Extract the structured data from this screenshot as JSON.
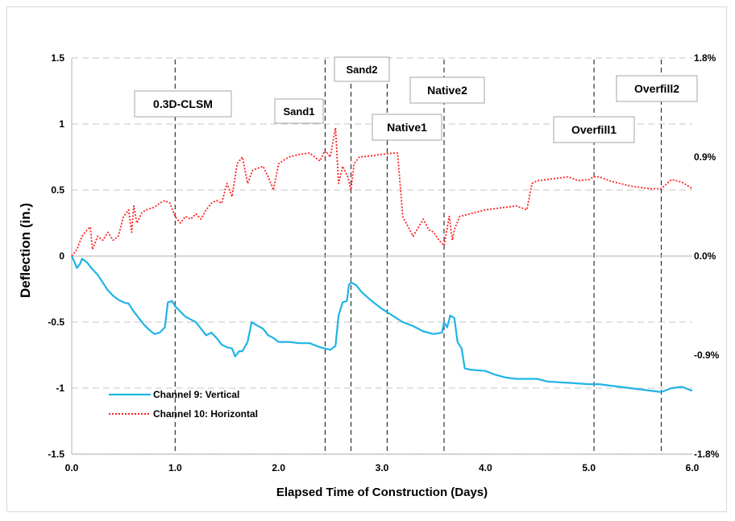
{
  "chart_data": {
    "type": "line",
    "xlabel": "Elapsed Time of Construction (Days)",
    "ylabel": "Deflection  (in.)",
    "xlim": [
      0,
      6
    ],
    "ylim": [
      -1.5,
      1.5
    ],
    "y2lim": [
      -1.8,
      1.8
    ],
    "x_ticks": [
      0,
      1,
      2,
      3,
      4,
      5,
      6
    ],
    "x_tick_labels": [
      "0.0",
      "1.0",
      "2.0",
      "3.0",
      "4.0",
      "5.0",
      "6.0"
    ],
    "y_ticks": [
      -1.5,
      -1,
      -0.5,
      0,
      0.5,
      1,
      1.5
    ],
    "y_tick_labels": [
      "-1.5",
      "-1",
      "-0.5",
      "0",
      "0.5",
      "1",
      "1.5"
    ],
    "y2_ticks": [
      -1.8,
      -0.9,
      0,
      0.9,
      1.8
    ],
    "y2_tick_labels": [
      "-1.8%",
      "-0.9%",
      "0.0%",
      "0.9%",
      "1.8%"
    ],
    "grid": "horizontal dashed",
    "legend_position": "bottom-left",
    "stages": [
      {
        "label": "0.3D-CLSM",
        "x": 1.0
      },
      {
        "label": "Sand1",
        "x": 2.45
      },
      {
        "label": "Sand2",
        "x": 2.7
      },
      {
        "label": "Native1",
        "x": 3.05
      },
      {
        "label": "Native2",
        "x": 3.6
      },
      {
        "label": "Overfill1",
        "x": 5.05
      },
      {
        "label": "Overfill2",
        "x": 5.7
      }
    ],
    "series": [
      {
        "name": "Channel 9: Vertical",
        "color": "#1fb4e6",
        "style": "solid",
        "points": [
          [
            0,
            0
          ],
          [
            0.03,
            -0.05
          ],
          [
            0.05,
            -0.09
          ],
          [
            0.08,
            -0.06
          ],
          [
            0.1,
            -0.02
          ],
          [
            0.15,
            -0.05
          ],
          [
            0.2,
            -0.1
          ],
          [
            0.25,
            -0.14
          ],
          [
            0.3,
            -0.2
          ],
          [
            0.35,
            -0.26
          ],
          [
            0.4,
            -0.3
          ],
          [
            0.45,
            -0.33
          ],
          [
            0.5,
            -0.35
          ],
          [
            0.55,
            -0.36
          ],
          [
            0.6,
            -0.42
          ],
          [
            0.65,
            -0.47
          ],
          [
            0.7,
            -0.52
          ],
          [
            0.75,
            -0.56
          ],
          [
            0.8,
            -0.59
          ],
          [
            0.85,
            -0.58
          ],
          [
            0.9,
            -0.54
          ],
          [
            0.93,
            -0.35
          ],
          [
            0.97,
            -0.34
          ],
          [
            1.0,
            -0.38
          ],
          [
            1.05,
            -0.42
          ],
          [
            1.1,
            -0.46
          ],
          [
            1.15,
            -0.48
          ],
          [
            1.2,
            -0.5
          ],
          [
            1.25,
            -0.55
          ],
          [
            1.3,
            -0.6
          ],
          [
            1.35,
            -0.58
          ],
          [
            1.4,
            -0.62
          ],
          [
            1.45,
            -0.67
          ],
          [
            1.5,
            -0.69
          ],
          [
            1.55,
            -0.7
          ],
          [
            1.58,
            -0.76
          ],
          [
            1.62,
            -0.72
          ],
          [
            1.65,
            -0.72
          ],
          [
            1.7,
            -0.65
          ],
          [
            1.74,
            -0.5
          ],
          [
            1.78,
            -0.52
          ],
          [
            1.85,
            -0.55
          ],
          [
            1.9,
            -0.6
          ],
          [
            1.95,
            -0.62
          ],
          [
            2.0,
            -0.65
          ],
          [
            2.1,
            -0.65
          ],
          [
            2.2,
            -0.66
          ],
          [
            2.3,
            -0.66
          ],
          [
            2.4,
            -0.69
          ],
          [
            2.5,
            -0.71
          ],
          [
            2.55,
            -0.68
          ],
          [
            2.58,
            -0.45
          ],
          [
            2.62,
            -0.35
          ],
          [
            2.66,
            -0.34
          ],
          [
            2.68,
            -0.22
          ],
          [
            2.7,
            -0.2
          ],
          [
            2.75,
            -0.22
          ],
          [
            2.8,
            -0.27
          ],
          [
            2.9,
            -0.34
          ],
          [
            3.0,
            -0.4
          ],
          [
            3.1,
            -0.45
          ],
          [
            3.2,
            -0.5
          ],
          [
            3.3,
            -0.53
          ],
          [
            3.4,
            -0.57
          ],
          [
            3.5,
            -0.59
          ],
          [
            3.58,
            -0.58
          ],
          [
            3.6,
            -0.5
          ],
          [
            3.63,
            -0.54
          ],
          [
            3.66,
            -0.45
          ],
          [
            3.7,
            -0.47
          ],
          [
            3.73,
            -0.65
          ],
          [
            3.77,
            -0.7
          ],
          [
            3.8,
            -0.85
          ],
          [
            3.85,
            -0.86
          ],
          [
            4.0,
            -0.87
          ],
          [
            4.1,
            -0.9
          ],
          [
            4.2,
            -0.92
          ],
          [
            4.3,
            -0.93
          ],
          [
            4.5,
            -0.93
          ],
          [
            4.6,
            -0.95
          ],
          [
            4.8,
            -0.96
          ],
          [
            5.0,
            -0.97
          ],
          [
            5.1,
            -0.97
          ],
          [
            5.3,
            -0.99
          ],
          [
            5.5,
            -1.01
          ],
          [
            5.7,
            -1.03
          ],
          [
            5.8,
            -1.0
          ],
          [
            5.9,
            -0.99
          ],
          [
            6.0,
            -1.02
          ]
        ]
      },
      {
        "name": "Channel 10: Horizontal",
        "color": "#ff2020",
        "style": "dotted",
        "points": [
          [
            0,
            0
          ],
          [
            0.05,
            0.05
          ],
          [
            0.1,
            0.15
          ],
          [
            0.15,
            0.2
          ],
          [
            0.18,
            0.22
          ],
          [
            0.2,
            0.05
          ],
          [
            0.25,
            0.15
          ],
          [
            0.3,
            0.12
          ],
          [
            0.35,
            0.18
          ],
          [
            0.4,
            0.12
          ],
          [
            0.45,
            0.15
          ],
          [
            0.5,
            0.3
          ],
          [
            0.55,
            0.35
          ],
          [
            0.58,
            0.18
          ],
          [
            0.6,
            0.38
          ],
          [
            0.63,
            0.25
          ],
          [
            0.68,
            0.33
          ],
          [
            0.72,
            0.35
          ],
          [
            0.8,
            0.37
          ],
          [
            0.85,
            0.4
          ],
          [
            0.9,
            0.42
          ],
          [
            0.95,
            0.4
          ],
          [
            1.0,
            0.3
          ],
          [
            1.05,
            0.25
          ],
          [
            1.1,
            0.3
          ],
          [
            1.15,
            0.28
          ],
          [
            1.2,
            0.32
          ],
          [
            1.25,
            0.28
          ],
          [
            1.3,
            0.35
          ],
          [
            1.35,
            0.4
          ],
          [
            1.4,
            0.42
          ],
          [
            1.45,
            0.4
          ],
          [
            1.5,
            0.55
          ],
          [
            1.55,
            0.45
          ],
          [
            1.6,
            0.7
          ],
          [
            1.65,
            0.75
          ],
          [
            1.7,
            0.55
          ],
          [
            1.75,
            0.65
          ],
          [
            1.85,
            0.68
          ],
          [
            1.9,
            0.6
          ],
          [
            1.95,
            0.5
          ],
          [
            2.0,
            0.7
          ],
          [
            2.1,
            0.75
          ],
          [
            2.2,
            0.77
          ],
          [
            2.3,
            0.78
          ],
          [
            2.4,
            0.72
          ],
          [
            2.45,
            0.8
          ],
          [
            2.5,
            0.75
          ],
          [
            2.55,
            0.97
          ],
          [
            2.58,
            0.55
          ],
          [
            2.62,
            0.68
          ],
          [
            2.67,
            0.6
          ],
          [
            2.7,
            0.5
          ],
          [
            2.73,
            0.7
          ],
          [
            2.78,
            0.75
          ],
          [
            2.9,
            0.76
          ],
          [
            3.0,
            0.77
          ],
          [
            3.1,
            0.78
          ],
          [
            3.15,
            0.78
          ],
          [
            3.2,
            0.3
          ],
          [
            3.3,
            0.15
          ],
          [
            3.4,
            0.28
          ],
          [
            3.45,
            0.2
          ],
          [
            3.5,
            0.18
          ],
          [
            3.55,
            0.12
          ],
          [
            3.6,
            0.08
          ],
          [
            3.65,
            0.3
          ],
          [
            3.68,
            0.12
          ],
          [
            3.7,
            0.2
          ],
          [
            3.75,
            0.3
          ],
          [
            3.9,
            0.33
          ],
          [
            4.0,
            0.35
          ],
          [
            4.2,
            0.37
          ],
          [
            4.3,
            0.38
          ],
          [
            4.4,
            0.35
          ],
          [
            4.45,
            0.55
          ],
          [
            4.5,
            0.57
          ],
          [
            4.6,
            0.58
          ],
          [
            4.8,
            0.6
          ],
          [
            4.9,
            0.57
          ],
          [
            5.0,
            0.58
          ],
          [
            5.05,
            0.6
          ],
          [
            5.1,
            0.6
          ],
          [
            5.2,
            0.57
          ],
          [
            5.4,
            0.53
          ],
          [
            5.6,
            0.51
          ],
          [
            5.7,
            0.51
          ],
          [
            5.8,
            0.58
          ],
          [
            5.9,
            0.56
          ],
          [
            6.0,
            0.51
          ]
        ]
      }
    ]
  }
}
